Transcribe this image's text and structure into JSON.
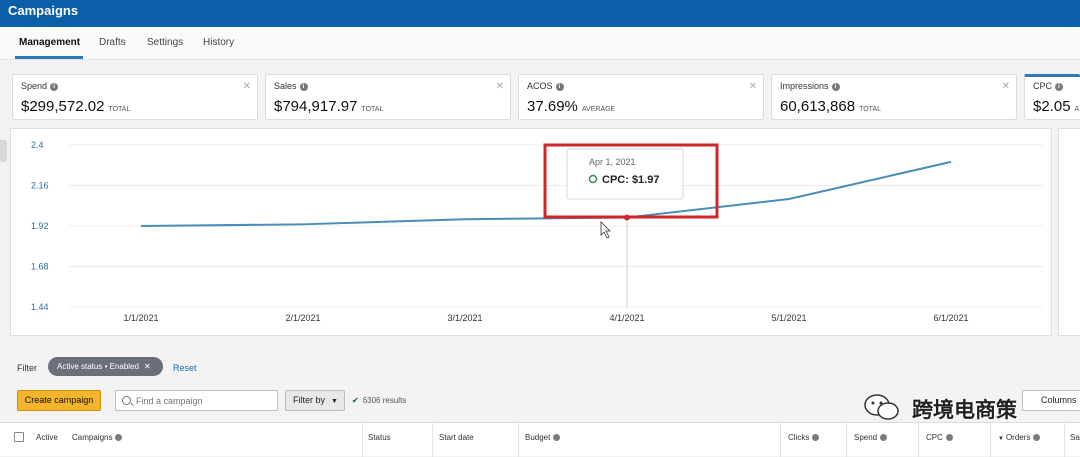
{
  "app": {
    "title": "Campaigns"
  },
  "tabs": [
    {
      "label": "Management",
      "active": true
    },
    {
      "label": "Drafts"
    },
    {
      "label": "Settings"
    },
    {
      "label": "History"
    }
  ],
  "metrics": [
    {
      "label": "Spend",
      "value": "$299,572.02",
      "sub": "TOTAL"
    },
    {
      "label": "Sales",
      "value": "$794,917.97",
      "sub": "TOTAL"
    },
    {
      "label": "ACOS",
      "value": "37.69%",
      "sub": "AVERAGE"
    },
    {
      "label": "Impressions",
      "value": "60,613,868",
      "sub": "TOTAL"
    },
    {
      "label": "CPC",
      "value": "$2.05",
      "sub": "A"
    }
  ],
  "chart_data": {
    "type": "line",
    "x": [
      "1/1/2021",
      "2/1/2021",
      "3/1/2021",
      "4/1/2021",
      "5/1/2021",
      "6/1/2021"
    ],
    "series": [
      {
        "name": "CPC",
        "values": [
          1.92,
          1.93,
          1.96,
          1.97,
          2.08,
          2.3
        ]
      }
    ],
    "yticks": [
      "2.4",
      "2.16",
      "1.92",
      "1.68",
      "1.44"
    ],
    "ylim": [
      1.44,
      2.4
    ],
    "grid": true,
    "colors": {
      "line": "#4a8db7",
      "tick": "#2a6f9e"
    },
    "tooltip": {
      "date": "Apr 1, 2021",
      "text": "CPC: $1.97"
    }
  },
  "filters": {
    "label": "Filter",
    "chip": "Active status • Enabled",
    "reset": "Reset",
    "create": "Create campaign",
    "search_placeholder": "Find a campaign",
    "filterby": "Filter by",
    "results": "6306 results",
    "columns": "Columns"
  },
  "table": {
    "headers": [
      "Active",
      "Campaigns",
      "Status",
      "Start date",
      "Budget",
      "Clicks",
      "Spend",
      "CPC",
      "Orders",
      "Sa"
    ]
  },
  "watermark": {
    "text": "跨境电商策"
  },
  "colors": {
    "topbar": "#0a5fa8",
    "accent": "#2b7bb9",
    "highlight": "#d0262a",
    "button": "#f5b52a"
  }
}
